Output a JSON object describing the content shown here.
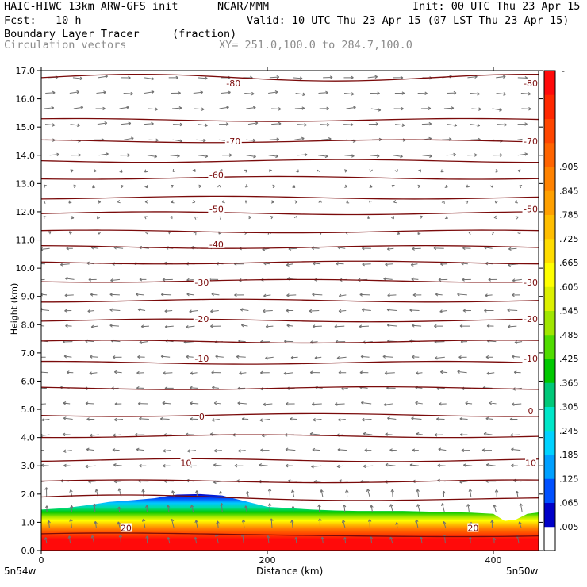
{
  "header": {
    "model": "HAIC-HIWC 13km ARW-GFS init",
    "org": "NCAR/MMM",
    "init": "Init: 00 UTC Thu 23 Apr 15",
    "fcst": "Fcst:   10 h",
    "valid": "Valid: 10 UTC Thu 23 Apr 15 (07 LST Thu 23 Apr 15)",
    "field": "Boundary Layer Tracer",
    "units": "(fraction)",
    "vectors": "Circulation vectors",
    "xy": "XY= 251.0,100.0 to 284.7,100.0"
  },
  "colors": {
    "contour": "#7a0a0a",
    "vector": "#707070",
    "colorbar": [
      "#ffffff",
      "#0000c8",
      "#0050ff",
      "#00a0ff",
      "#00d2ff",
      "#00e6c8",
      "#00c878",
      "#00c800",
      "#50dc00",
      "#a0e600",
      "#dcf000",
      "#ffff00",
      "#ffdc00",
      "#ffbe00",
      "#ffa000",
      "#ff8200",
      "#ff6400",
      "#ff4600",
      "#ff2800",
      "#ff0a0a"
    ]
  },
  "chart_data": {
    "type": "contour",
    "xlabel": "Distance (km)",
    "ylabel": "Height (km)",
    "xlim": [
      0,
      440
    ],
    "ylim": [
      0,
      17
    ],
    "x_ticks": [
      "0",
      "200",
      "400"
    ],
    "x_tick_values": [
      0,
      200,
      400
    ],
    "x_end_labels": [
      "5n54w",
      "5n50w"
    ],
    "y_ticks": [
      "0.0",
      "1.0",
      "2.0",
      "3.0",
      "4.0",
      "5.0",
      "6.0",
      "7.0",
      "8.0",
      "9.0",
      "10.0",
      "11.0",
      "12.0",
      "13.0",
      "14.0",
      "15.0",
      "16.0",
      "17.0"
    ],
    "colorbar": {
      "labels": [
        ".005",
        ".065",
        ".125",
        ".185",
        ".245",
        ".305",
        ".365",
        ".425",
        ".485",
        ".545",
        ".605",
        ".665",
        ".725",
        ".785",
        ".845",
        ".905"
      ],
      "top_label": "-"
    },
    "contour_labels": [
      {
        "text": "-80",
        "x": 170,
        "y": 16.55
      },
      {
        "text": "-80",
        "x": 433,
        "y": 16.55
      },
      {
        "text": "-70",
        "x": 170,
        "y": 14.5
      },
      {
        "text": "-70",
        "x": 433,
        "y": 14.5
      },
      {
        "text": "-60",
        "x": 155,
        "y": 13.3
      },
      {
        "text": "-50",
        "x": 155,
        "y": 12.1
      },
      {
        "text": "-50",
        "x": 433,
        "y": 12.1
      },
      {
        "text": "-40",
        "x": 155,
        "y": 10.85
      },
      {
        "text": "-30",
        "x": 142,
        "y": 9.5
      },
      {
        "text": "-30",
        "x": 433,
        "y": 9.5
      },
      {
        "text": "-20",
        "x": 142,
        "y": 8.2
      },
      {
        "text": "-20",
        "x": 433,
        "y": 8.2
      },
      {
        "text": "-10",
        "x": 142,
        "y": 6.8
      },
      {
        "text": "-10",
        "x": 433,
        "y": 6.8
      },
      {
        "text": "0",
        "x": 142,
        "y": 4.75
      },
      {
        "text": "0",
        "x": 433,
        "y": 4.95
      },
      {
        "text": "10",
        "x": 128,
        "y": 3.1
      },
      {
        "text": "10",
        "x": 433,
        "y": 3.1
      },
      {
        "text": "20",
        "x": 75,
        "y": 0.8
      },
      {
        "text": "20",
        "x": 382,
        "y": 0.8
      }
    ],
    "boundary_layer_top_km": {
      "x": [
        0,
        20,
        40,
        60,
        80,
        100,
        120,
        140,
        160,
        180,
        200,
        220,
        240,
        260,
        280,
        300,
        320,
        340,
        360,
        380,
        400,
        410,
        420,
        430,
        440
      ],
      "y": [
        1.45,
        1.5,
        1.6,
        1.72,
        1.78,
        1.85,
        1.98,
        2.0,
        1.95,
        1.75,
        1.55,
        1.5,
        1.45,
        1.42,
        1.4,
        1.4,
        1.4,
        1.38,
        1.36,
        1.34,
        1.3,
        1.05,
        1.1,
        1.3,
        1.35
      ]
    }
  }
}
